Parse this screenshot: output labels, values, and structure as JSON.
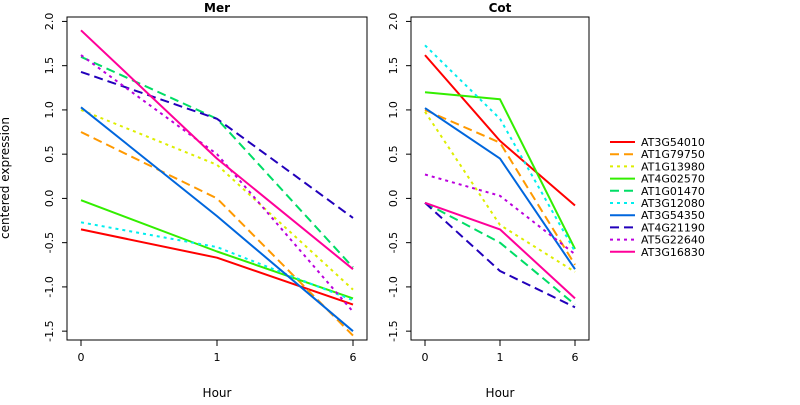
{
  "chart_data": {
    "type": "line",
    "ylabel": "centered expression",
    "xlabel": "Hour",
    "ylim": [
      -1.6,
      2.05
    ],
    "x_categories": [
      "0",
      "1",
      "6"
    ],
    "y_ticks": [
      -1.5,
      -1.0,
      -0.5,
      0.0,
      0.5,
      1.0,
      1.5,
      2.0
    ],
    "y_tick_labels": [
      "-1.5",
      "-1.0",
      "-0.5",
      "0.0",
      "0.5",
      "1.0",
      "1.5",
      "2.0"
    ],
    "legend_position": "right",
    "series_style": [
      {
        "name": "AT3G54010",
        "color": "#ff0000",
        "dash": "solid"
      },
      {
        "name": "AT1G79750",
        "color": "#ff9900",
        "dash": "dashed"
      },
      {
        "name": "AT1G13980",
        "color": "#ddee00",
        "dash": "dotted"
      },
      {
        "name": "AT4G02570",
        "color": "#33ee00",
        "dash": "solid"
      },
      {
        "name": "AT1G01470",
        "color": "#00dd66",
        "dash": "dashed"
      },
      {
        "name": "AT3G12080",
        "color": "#00eeee",
        "dash": "dotted"
      },
      {
        "name": "AT3G54350",
        "color": "#0066dd",
        "dash": "solid"
      },
      {
        "name": "AT4G21190",
        "color": "#2200bb",
        "dash": "dashed"
      },
      {
        "name": "AT5G22640",
        "color": "#bb00dd",
        "dash": "dotted"
      },
      {
        "name": "AT3G16830",
        "color": "#ff0099",
        "dash": "solid"
      }
    ],
    "panels": [
      {
        "title": "Mer",
        "series": [
          {
            "name": "AT3G54010",
            "values": [
              -0.35,
              -0.67,
              -1.2
            ]
          },
          {
            "name": "AT1G79750",
            "values": [
              0.75,
              0.0,
              -1.55
            ]
          },
          {
            "name": "AT1G13980",
            "values": [
              1.0,
              0.38,
              -1.03
            ]
          },
          {
            "name": "AT4G02570",
            "values": [
              -0.02,
              -0.6,
              -1.13
            ]
          },
          {
            "name": "AT1G01470",
            "values": [
              1.6,
              0.9,
              -0.78
            ]
          },
          {
            "name": "AT3G12080",
            "values": [
              -0.27,
              -0.55,
              -1.15
            ]
          },
          {
            "name": "AT3G54350",
            "values": [
              1.03,
              -0.2,
              -1.5
            ]
          },
          {
            "name": "AT4G21190",
            "values": [
              1.43,
              0.9,
              -0.22
            ]
          },
          {
            "name": "AT5G22640",
            "values": [
              1.62,
              0.5,
              -1.28
            ]
          },
          {
            "name": "AT3G16830",
            "values": [
              1.9,
              0.45,
              -0.8
            ]
          }
        ]
      },
      {
        "title": "Cot",
        "series": [
          {
            "name": "AT3G54010",
            "values": [
              1.62,
              0.65,
              -0.08
            ]
          },
          {
            "name": "AT1G79750",
            "values": [
              1.0,
              0.63,
              -0.75
            ]
          },
          {
            "name": "AT1G13980",
            "values": [
              0.98,
              -0.3,
              -0.83
            ]
          },
          {
            "name": "AT4G02570",
            "values": [
              1.2,
              1.12,
              -0.57
            ]
          },
          {
            "name": "AT1G01470",
            "values": [
              -0.05,
              -0.5,
              -1.2
            ]
          },
          {
            "name": "AT3G12080",
            "values": [
              1.73,
              0.9,
              -0.6
            ]
          },
          {
            "name": "AT3G54350",
            "values": [
              1.02,
              0.45,
              -0.8
            ]
          },
          {
            "name": "AT4G21190",
            "values": [
              -0.05,
              -0.82,
              -1.23
            ]
          },
          {
            "name": "AT5G22640",
            "values": [
              0.27,
              0.03,
              -0.63
            ]
          },
          {
            "name": "AT3G16830",
            "values": [
              -0.05,
              -0.35,
              -1.13
            ]
          }
        ]
      }
    ]
  }
}
